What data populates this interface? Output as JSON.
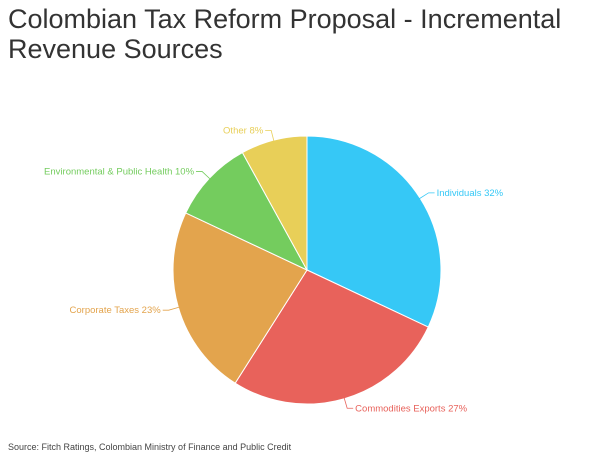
{
  "chart_data": {
    "type": "pie",
    "title": "Colombian Tax Reform Proposal - Incremental Revenue Sources",
    "slices": [
      {
        "label": "Individuals",
        "value": 32,
        "text": "Individuals 32%",
        "color": "#36c8f6"
      },
      {
        "label": "Commodities Exports",
        "value": 27,
        "text": "Commodities Exports 27%",
        "color": "#e8625b"
      },
      {
        "label": "Corporate Taxes",
        "value": 23,
        "text": "Corporate Taxes 23%",
        "color": "#e3a44d"
      },
      {
        "label": "Environmental & Public Health",
        "value": 10,
        "text": "Environmental & Public Health 10%",
        "color": "#74cc5e"
      },
      {
        "label": "Other",
        "value": 8,
        "text": "Other 8%",
        "color": "#e8cf58"
      }
    ],
    "source": "Source: Fitch Ratings, Colombian Ministry of Finance and Public Credit"
  }
}
